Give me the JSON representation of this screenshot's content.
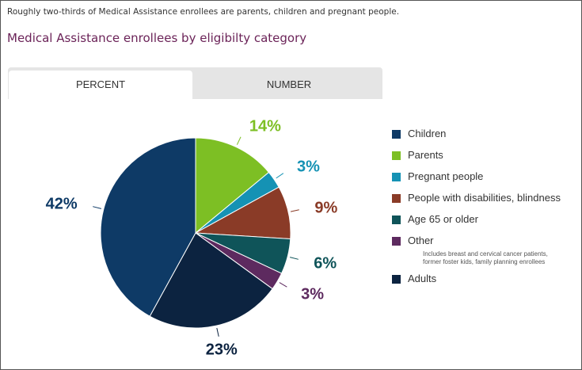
{
  "subtitle": "Roughly two-thirds of Medical Assistance enrollees are parents, children and pregnant people.",
  "tabs": {
    "percent": "PERCENT",
    "number": "NUMBER",
    "active": "percent"
  },
  "chart_data": {
    "type": "pie",
    "title": "Medical Assistance enrollees by eligibilty category",
    "legend_position": "right",
    "slices": [
      {
        "name": "Parents",
        "value": 14,
        "label": "14%",
        "color": "#7dbf24"
      },
      {
        "name": "Pregnant people",
        "value": 3,
        "label": "3%",
        "color": "#1592b4"
      },
      {
        "name": "People with disabilities, blindness",
        "value": 9,
        "label": "9%",
        "color": "#8a3b27"
      },
      {
        "name": "Age 65 or older",
        "value": 6,
        "label": "6%",
        "color": "#0f5459"
      },
      {
        "name": "Other",
        "value": 3,
        "label": "3%",
        "color": "#5d2a5f"
      },
      {
        "name": "Adults",
        "value": 23,
        "label": "23%",
        "color": "#0c2340"
      },
      {
        "name": "Children",
        "value": 42,
        "label": "42%",
        "color": "#0e3a66"
      }
    ],
    "legend": [
      {
        "name": "Children",
        "color": "#0e3a66"
      },
      {
        "name": "Parents",
        "color": "#7dbf24"
      },
      {
        "name": "Pregnant people",
        "color": "#1592b4"
      },
      {
        "name": "People with disabilities, blindness",
        "color": "#8a3b27"
      },
      {
        "name": "Age 65 or older",
        "color": "#0f5459"
      },
      {
        "name": "Other",
        "color": "#5d2a5f",
        "note": "Includes breast and cervical cancer patients,\nformer foster kids, family planning enrollees"
      },
      {
        "name": "Adults",
        "color": "#0c2340"
      }
    ]
  }
}
